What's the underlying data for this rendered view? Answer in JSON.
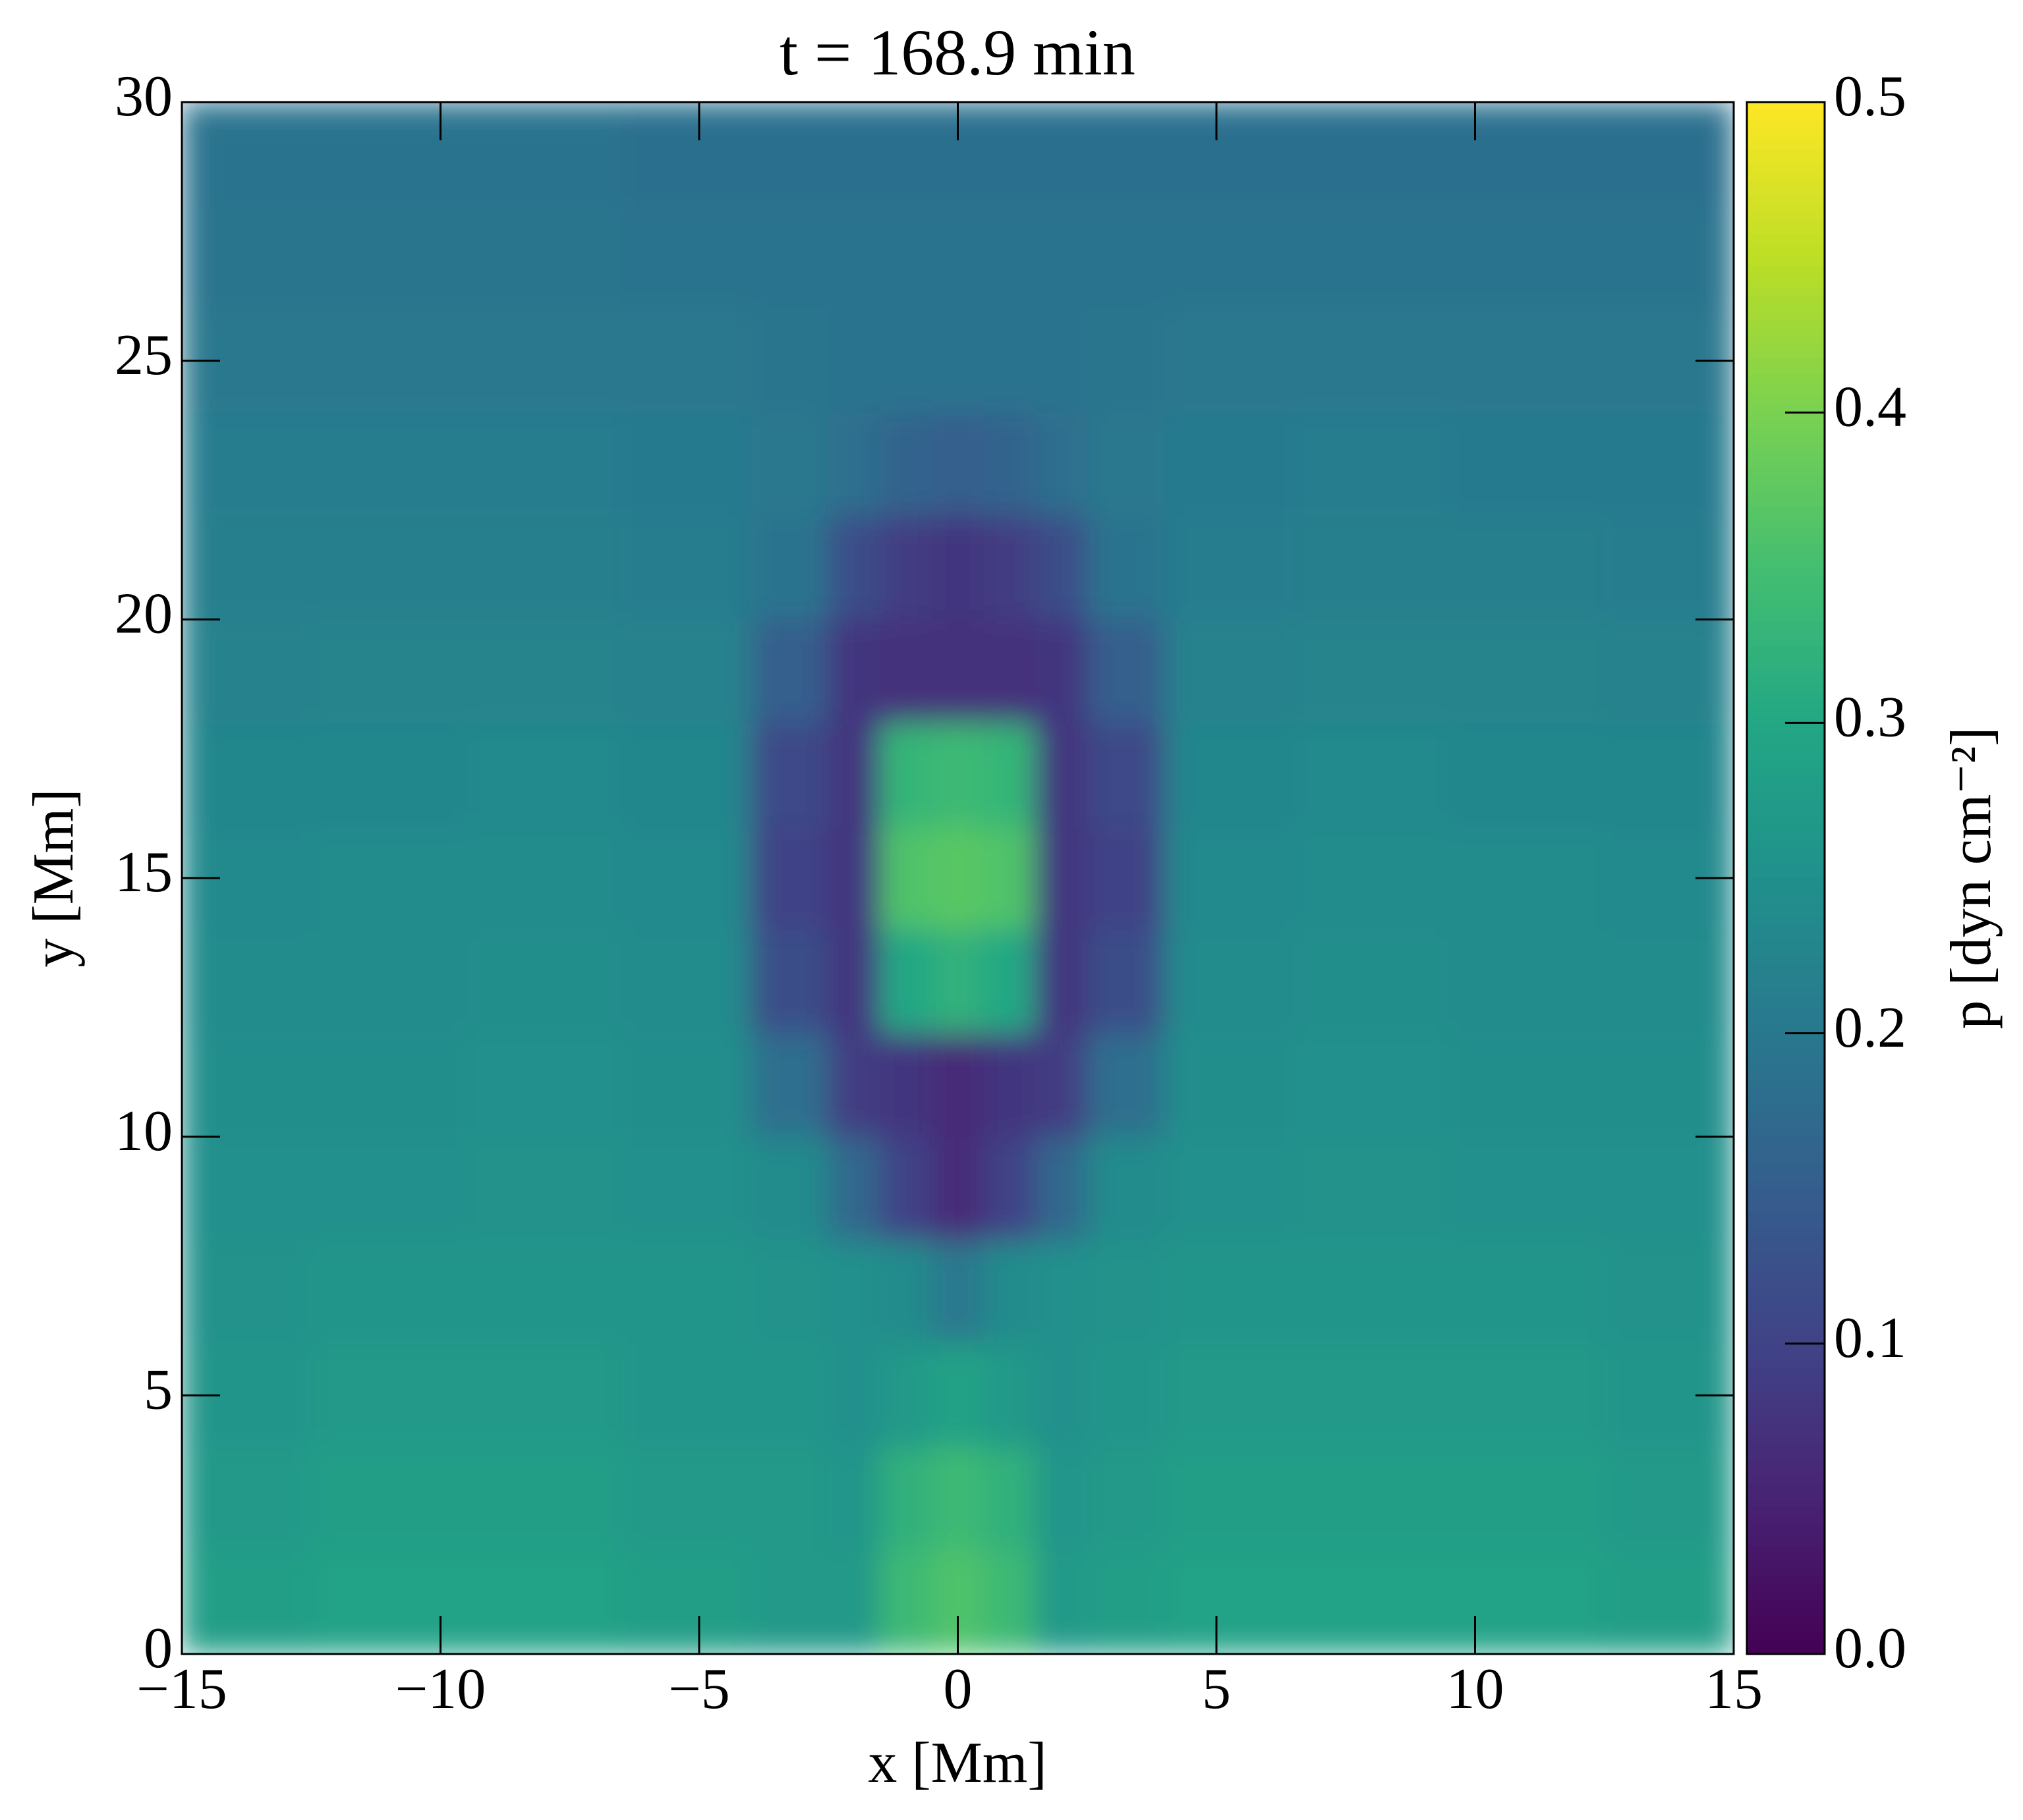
{
  "chart_data": {
    "type": "heatmap",
    "title": "t =  168.9 min",
    "xlabel": "x [Mm]",
    "ylabel": "y [Mm]",
    "colorbar_label": "p [dyn cm⁻²]",
    "colormap": "viridis",
    "xlim": [
      -15,
      15
    ],
    "ylim": [
      0,
      30
    ],
    "clim": [
      0,
      0.5
    ],
    "xticks": [
      {
        "value": -15,
        "label": "−15"
      },
      {
        "value": -10,
        "label": "−10"
      },
      {
        "value": -5,
        "label": "−5"
      },
      0,
      5,
      10,
      15
    ],
    "yticks": [
      0,
      5,
      10,
      15,
      20,
      25,
      30
    ],
    "cticks": [
      {
        "value": 0,
        "label": "0.0"
      },
      0.1,
      0.2,
      0.3,
      0.4,
      0.5
    ],
    "x": [
      -14,
      -11,
      -8,
      -5,
      -3,
      -2,
      -1,
      0,
      1,
      2,
      3,
      5,
      8,
      11,
      14
    ],
    "y": [
      1,
      3,
      5,
      7,
      9,
      11,
      13,
      15,
      17,
      19,
      21,
      23,
      25,
      27,
      29
    ],
    "values": [
      [
        0.28,
        0.29,
        0.29,
        0.28,
        0.27,
        0.27,
        0.34,
        0.36,
        0.34,
        0.27,
        0.28,
        0.29,
        0.29,
        0.29,
        0.28
      ],
      [
        0.27,
        0.28,
        0.28,
        0.27,
        0.27,
        0.26,
        0.32,
        0.34,
        0.32,
        0.26,
        0.27,
        0.28,
        0.28,
        0.28,
        0.27
      ],
      [
        0.26,
        0.27,
        0.27,
        0.26,
        0.26,
        0.25,
        0.27,
        0.29,
        0.27,
        0.25,
        0.26,
        0.27,
        0.27,
        0.27,
        0.26
      ],
      [
        0.255,
        0.26,
        0.26,
        0.26,
        0.255,
        0.25,
        0.24,
        0.2,
        0.24,
        0.25,
        0.255,
        0.26,
        0.26,
        0.26,
        0.255
      ],
      [
        0.25,
        0.25,
        0.255,
        0.25,
        0.24,
        0.17,
        0.1,
        0.06,
        0.1,
        0.17,
        0.24,
        0.25,
        0.255,
        0.25,
        0.25
      ],
      [
        0.245,
        0.245,
        0.25,
        0.245,
        0.18,
        0.09,
        0.08,
        0.06,
        0.08,
        0.09,
        0.18,
        0.245,
        0.25,
        0.245,
        0.245
      ],
      [
        0.24,
        0.24,
        0.245,
        0.24,
        0.12,
        0.08,
        0.3,
        0.32,
        0.3,
        0.08,
        0.12,
        0.24,
        0.245,
        0.24,
        0.24
      ],
      [
        0.235,
        0.24,
        0.24,
        0.235,
        0.1,
        0.08,
        0.36,
        0.37,
        0.36,
        0.08,
        0.1,
        0.235,
        0.24,
        0.24,
        0.235
      ],
      [
        0.23,
        0.23,
        0.235,
        0.23,
        0.11,
        0.08,
        0.33,
        0.34,
        0.33,
        0.08,
        0.11,
        0.23,
        0.235,
        0.23,
        0.23
      ],
      [
        0.22,
        0.225,
        0.225,
        0.22,
        0.15,
        0.08,
        0.07,
        0.07,
        0.07,
        0.08,
        0.15,
        0.22,
        0.225,
        0.225,
        0.22
      ],
      [
        0.215,
        0.215,
        0.215,
        0.21,
        0.19,
        0.12,
        0.09,
        0.08,
        0.09,
        0.12,
        0.19,
        0.21,
        0.215,
        0.215,
        0.21
      ],
      [
        0.21,
        0.21,
        0.21,
        0.205,
        0.2,
        0.18,
        0.16,
        0.15,
        0.16,
        0.18,
        0.2,
        0.205,
        0.21,
        0.205,
        0.205
      ],
      [
        0.2,
        0.2,
        0.2,
        0.2,
        0.195,
        0.19,
        0.19,
        0.19,
        0.19,
        0.19,
        0.195,
        0.2,
        0.2,
        0.2,
        0.2
      ],
      [
        0.195,
        0.195,
        0.195,
        0.19,
        0.19,
        0.19,
        0.19,
        0.19,
        0.19,
        0.19,
        0.19,
        0.19,
        0.19,
        0.19,
        0.19
      ],
      [
        0.19,
        0.19,
        0.19,
        0.185,
        0.185,
        0.185,
        0.185,
        0.185,
        0.185,
        0.185,
        0.185,
        0.185,
        0.185,
        0.185,
        0.185
      ]
    ]
  }
}
